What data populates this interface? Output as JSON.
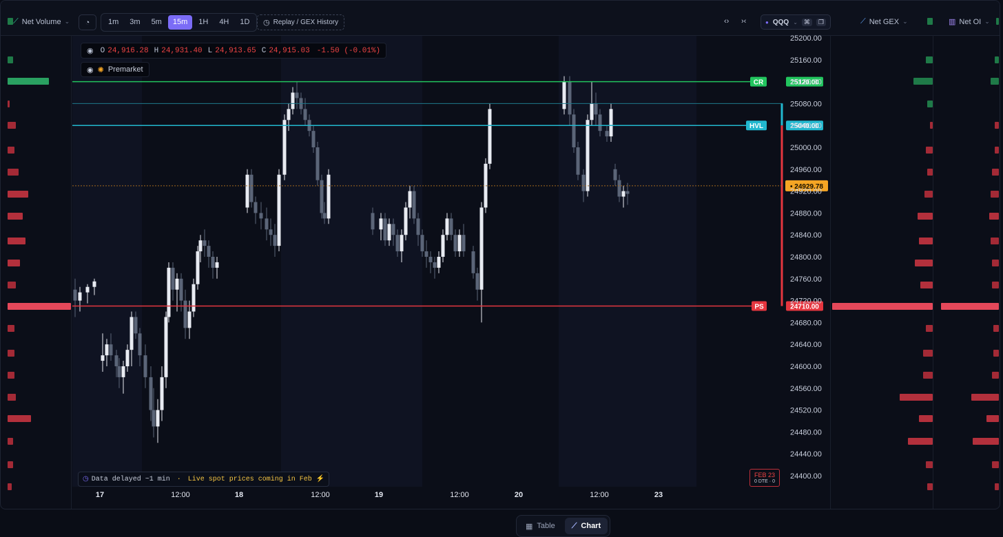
{
  "toolbar": {
    "net_volume_label": "Net Volume",
    "timeframes": [
      "1m",
      "3m",
      "5m",
      "15m",
      "1H",
      "4H",
      "1D"
    ],
    "active_timeframe": "15m",
    "replay_label": "Replay / GEX History",
    "symbol": "QQQ",
    "net_gex_label": "Net GEX",
    "net_oi_label": "Net OI"
  },
  "ohlc": {
    "o_label": "O",
    "o": "24,916.28",
    "h_label": "H",
    "h": "24,931.40",
    "l_label": "L",
    "l": "24,913.65",
    "c_label": "C",
    "c": "24,915.03",
    "change": "-1.50 (-0.01%)"
  },
  "premarket_label": "Premarket",
  "price_axis": [
    "25200.00",
    "25160.00",
    "25120.00",
    "25080.00",
    "25040.00",
    "25000.00",
    "24960.00",
    "24920.00",
    "24880.00",
    "24840.00",
    "24800.00",
    "24760.00",
    "24720.00",
    "24680.00",
    "24640.00",
    "24600.00",
    "24560.00",
    "24520.00",
    "24480.00",
    "24440.00",
    "24400.00"
  ],
  "levels": {
    "cr": {
      "tag": "CR",
      "value": "25120.00",
      "color": "#22c55e"
    },
    "hvl": {
      "tag": "HVL",
      "value": "25040.00",
      "color": "#22b8cf"
    },
    "ps": {
      "tag": "PS",
      "value": "24710.00",
      "color": "#e5363f"
    },
    "current": {
      "value": "• 24929.78",
      "color": "#f5a524"
    }
  },
  "time_axis": [
    "17",
    "12:00",
    "18",
    "12:00",
    "19",
    "12:00",
    "20",
    "12:00",
    "23"
  ],
  "notice": {
    "prefix": "Data delayed ~1 min",
    "sep": " · ",
    "highlight": "Live spot prices coming in Feb ⚡"
  },
  "expiry_badge": {
    "date": "FEB 23",
    "sub": "0 DTE · 0"
  },
  "bottom_tabs": {
    "table": "Table",
    "chart": "Chart",
    "active": "Chart"
  },
  "colors": {
    "accent": "#7b6cf6",
    "up": "#e8ebf2",
    "down": "#5b6578",
    "positive_bar": "#1f7a48",
    "negative_bar": "#b3303c"
  },
  "chart_data": {
    "type": "candlestick",
    "symbol": "QQQ",
    "interval": "15m",
    "ylim": [
      24380,
      25220
    ],
    "candles": [
      [
        24740,
        24760,
        24690,
        24720
      ],
      [
        24720,
        24745,
        24700,
        24735
      ],
      [
        24735,
        24750,
        24715,
        24745
      ],
      [
        24745,
        24760,
        24730,
        24755
      ],
      [
        24610,
        24660,
        24590,
        24620
      ],
      [
        24620,
        24650,
        24600,
        24640
      ],
      [
        24640,
        24660,
        24610,
        24620
      ],
      [
        24620,
        24630,
        24580,
        24600
      ],
      [
        24600,
        24615,
        24560,
        24580
      ],
      [
        24580,
        24610,
        24550,
        24600
      ],
      [
        24600,
        24640,
        24590,
        24630
      ],
      [
        24630,
        24700,
        24600,
        24690
      ],
      [
        24690,
        24700,
        24650,
        24660
      ],
      [
        24660,
        24670,
        24600,
        24620
      ],
      [
        24620,
        24640,
        24560,
        24580
      ],
      [
        24580,
        24600,
        24500,
        24520
      ],
      [
        24520,
        24560,
        24470,
        24490
      ],
      [
        24490,
        24540,
        24460,
        24520
      ],
      [
        24520,
        24600,
        24500,
        24580
      ],
      [
        24580,
        24700,
        24560,
        24690
      ],
      [
        24690,
        24790,
        24680,
        24780
      ],
      [
        24780,
        24790,
        24720,
        24740
      ],
      [
        24740,
        24770,
        24700,
        24760
      ],
      [
        24760,
        24770,
        24700,
        24720
      ],
      [
        24720,
        24740,
        24650,
        24670
      ],
      [
        24670,
        24720,
        24650,
        24700
      ],
      [
        24700,
        24760,
        24690,
        24750
      ],
      [
        24750,
        24820,
        24740,
        24810
      ],
      [
        24810,
        24840,
        24790,
        24830
      ],
      [
        24830,
        24850,
        24800,
        24820
      ],
      [
        24820,
        24830,
        24780,
        24800
      ],
      [
        24800,
        24810,
        24760,
        24780
      ],
      [
        24780,
        24800,
        24760,
        24790
      ],
      [
        24890,
        24960,
        24880,
        24950
      ],
      [
        24950,
        24960,
        24890,
        24900
      ],
      [
        24900,
        24910,
        24860,
        24880
      ],
      [
        24880,
        24900,
        24850,
        24870
      ],
      [
        24870,
        24890,
        24830,
        24850
      ],
      [
        24850,
        24870,
        24820,
        24840
      ],
      [
        24840,
        24860,
        24800,
        24820
      ],
      [
        24820,
        24960,
        24810,
        24950
      ],
      [
        24950,
        25060,
        24940,
        25050
      ],
      [
        25050,
        25080,
        25030,
        25070
      ],
      [
        25070,
        25110,
        25060,
        25100
      ],
      [
        25100,
        25120,
        25070,
        25090
      ],
      [
        25090,
        25100,
        25060,
        25070
      ],
      [
        25070,
        25090,
        25040,
        25050
      ],
      [
        25050,
        25060,
        25020,
        25030
      ],
      [
        25030,
        25040,
        24990,
        25000
      ],
      [
        25000,
        25010,
        24930,
        24940
      ],
      [
        24940,
        24950,
        24870,
        24880
      ],
      [
        24880,
        24900,
        24860,
        24870
      ],
      [
        24870,
        24960,
        24860,
        24950
      ],
      [
        24880,
        24890,
        24840,
        24850
      ],
      [
        24850,
        24880,
        24830,
        24870
      ],
      [
        24870,
        24880,
        24820,
        24830
      ],
      [
        24830,
        24870,
        24820,
        24860
      ],
      [
        24860,
        24870,
        24820,
        24840
      ],
      [
        24840,
        24850,
        24800,
        24810
      ],
      [
        24810,
        24850,
        24790,
        24840
      ],
      [
        24840,
        24900,
        24830,
        24890
      ],
      [
        24890,
        24930,
        24870,
        24920
      ],
      [
        24920,
        24930,
        24860,
        24870
      ],
      [
        24870,
        24880,
        24820,
        24840
      ],
      [
        24840,
        24850,
        24800,
        24810
      ],
      [
        24810,
        24830,
        24780,
        24800
      ],
      [
        24800,
        24810,
        24770,
        24790
      ],
      [
        24790,
        24800,
        24760,
        24780
      ],
      [
        24780,
        24810,
        24770,
        24800
      ],
      [
        24800,
        24850,
        24790,
        24840
      ],
      [
        24840,
        24880,
        24830,
        24870
      ],
      [
        24870,
        24880,
        24830,
        24840
      ],
      [
        24840,
        24850,
        24800,
        24810
      ],
      [
        24810,
        24850,
        24800,
        24840
      ],
      [
        24840,
        24860,
        24800,
        24810
      ],
      [
        24810,
        24820,
        24760,
        24770
      ],
      [
        24770,
        24780,
        24720,
        24740
      ],
      [
        24740,
        24900,
        24680,
        24890
      ],
      [
        24890,
        24980,
        24880,
        24970
      ],
      [
        24970,
        25080,
        24960,
        25070
      ],
      [
        25070,
        25130,
        25060,
        25120
      ],
      [
        25120,
        25130,
        25040,
        25060
      ],
      [
        25060,
        25070,
        24990,
        25000
      ],
      [
        25000,
        25010,
        24940,
        24950
      ],
      [
        24950,
        24960,
        24900,
        24920
      ],
      [
        24920,
        25060,
        24910,
        25050
      ],
      [
        25050,
        25120,
        25040,
        25080
      ],
      [
        25080,
        25100,
        25040,
        25060
      ],
      [
        25060,
        25070,
        25020,
        25030
      ],
      [
        25030,
        25040,
        25010,
        25020
      ],
      [
        25020,
        25080,
        25010,
        25070
      ],
      [
        24960,
        24970,
        24930,
        24940
      ],
      [
        24940,
        24950,
        24900,
        24910
      ],
      [
        24910,
        24930,
        24890,
        24920
      ],
      [
        24920,
        24935,
        24895,
        24915
      ]
    ]
  }
}
